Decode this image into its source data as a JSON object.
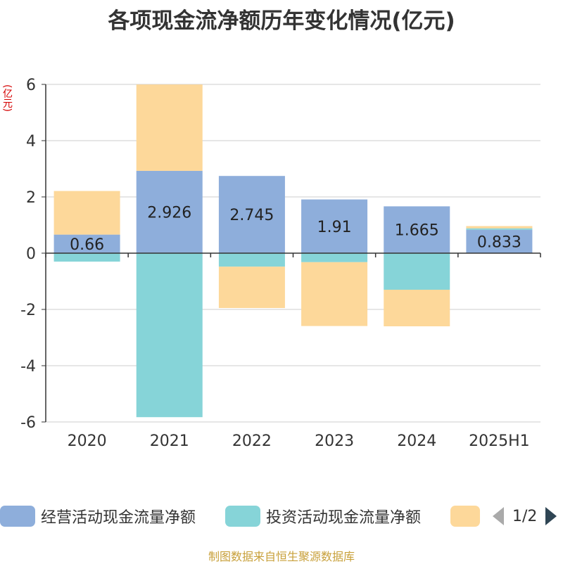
{
  "title": "各项现金流净额历年变化情况(亿元)",
  "unit_label": "(亿元)",
  "source": "制图数据来自恒生聚源数据库",
  "pager": {
    "text": "1/2"
  },
  "colors": {
    "operating": "#8eaedb",
    "investing": "#86d4d8",
    "financing": "#fdd89a",
    "axis": "#333333",
    "grid": "#cccccc"
  },
  "chart_data": {
    "type": "bar",
    "stacked": true,
    "categories": [
      "2020",
      "2021",
      "2022",
      "2023",
      "2024",
      "2025H1"
    ],
    "ylim": [
      -6,
      6
    ],
    "yticks": [
      6,
      4,
      2,
      0,
      -2,
      -4,
      -6
    ],
    "grid": true,
    "legend_position": "bottom",
    "series": [
      {
        "name": "经营活动现金流量净额",
        "values": [
          0.66,
          2.926,
          2.745,
          1.91,
          1.665,
          0.833
        ],
        "labels": [
          "0.66",
          "2.926",
          "2.745",
          "1.91",
          "1.665",
          "0.833"
        ]
      },
      {
        "name": "投资活动现金流量净额",
        "values": [
          -0.3,
          -5.83,
          -0.48,
          -0.32,
          -1.3,
          0.05
        ]
      },
      {
        "name": "",
        "values": [
          1.55,
          3.07,
          -1.47,
          -2.27,
          -1.3,
          0.08
        ]
      }
    ]
  }
}
